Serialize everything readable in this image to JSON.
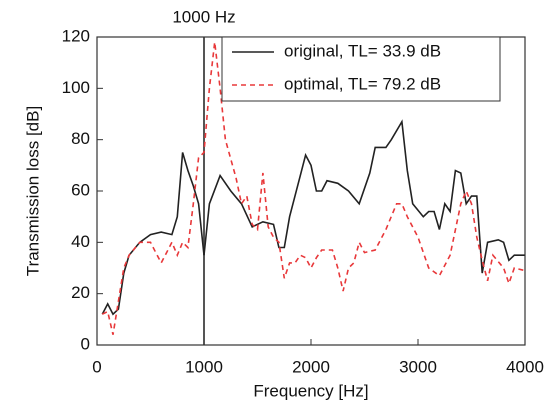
{
  "chart_data": {
    "type": "line",
    "xlabel": "Frequency [Hz]",
    "ylabel": "Transmission loss [dB]",
    "xlim": [
      0,
      4000
    ],
    "ylim": [
      0,
      120
    ],
    "xticks": [
      0,
      1000,
      2000,
      3000,
      4000
    ],
    "yticks": [
      0,
      20,
      40,
      60,
      80,
      100,
      120
    ],
    "grid": false,
    "legend": "upper right",
    "vline": {
      "x": 1000,
      "label": "1000 Hz",
      "color": "#555555"
    },
    "series": [
      {
        "name": "original, TL= 33.9 dB",
        "color": "#222222",
        "dash": false,
        "x": [
          50,
          100,
          150,
          200,
          250,
          300,
          400,
          500,
          600,
          700,
          750,
          800,
          850,
          900,
          950,
          1000,
          1050,
          1150,
          1250,
          1350,
          1450,
          1550,
          1650,
          1700,
          1750,
          1800,
          1900,
          1950,
          2000,
          2050,
          2100,
          2150,
          2250,
          2350,
          2450,
          2550,
          2600,
          2700,
          2750,
          2850,
          2900,
          2950,
          3050,
          3100,
          3150,
          3200,
          3250,
          3300,
          3350,
          3400,
          3450,
          3500,
          3550,
          3600,
          3650,
          3750,
          3800,
          3850,
          3900,
          4000
        ],
        "values": [
          12,
          16,
          12,
          14,
          28,
          35,
          40,
          43,
          44,
          43,
          50,
          75,
          68,
          62,
          55,
          35,
          55,
          66,
          60,
          55,
          46,
          48,
          47,
          38,
          38,
          50,
          66,
          74,
          70,
          60,
          60,
          64,
          63,
          60,
          55,
          67,
          77,
          77,
          80,
          87,
          68,
          55,
          50,
          52,
          52,
          45,
          55,
          52,
          68,
          67,
          55,
          58,
          58,
          28,
          40,
          41,
          40,
          33,
          35,
          35
        ]
      },
      {
        "name": "optimal, TL= 79.2 dB",
        "color": "#e8383a",
        "dash": true,
        "x": [
          50,
          100,
          150,
          200,
          250,
          300,
          400,
          500,
          550,
          600,
          650,
          700,
          750,
          800,
          850,
          900,
          950,
          1000,
          1050,
          1100,
          1150,
          1200,
          1300,
          1350,
          1400,
          1450,
          1500,
          1550,
          1600,
          1650,
          1700,
          1750,
          1800,
          1850,
          1900,
          1950,
          2000,
          2050,
          2100,
          2200,
          2250,
          2300,
          2350,
          2400,
          2450,
          2500,
          2600,
          2700,
          2800,
          2850,
          2900,
          3000,
          3100,
          3200,
          3300,
          3400,
          3450,
          3500,
          3550,
          3600,
          3650,
          3700,
          3800,
          3850,
          3900,
          4000
        ],
        "values": [
          12,
          13,
          4,
          17,
          30,
          35,
          40,
          40,
          36,
          32,
          36,
          40,
          35,
          40,
          38,
          55,
          73,
          75,
          100,
          118,
          100,
          80,
          65,
          55,
          58,
          47,
          45,
          67,
          46,
          42,
          40,
          26,
          32,
          32,
          35,
          34,
          30,
          34,
          37,
          37,
          30,
          21,
          30,
          32,
          40,
          36,
          37,
          45,
          55,
          55,
          50,
          42,
          30,
          27,
          35,
          55,
          60,
          55,
          42,
          33,
          25,
          35,
          30,
          24,
          30,
          29
        ]
      }
    ]
  }
}
